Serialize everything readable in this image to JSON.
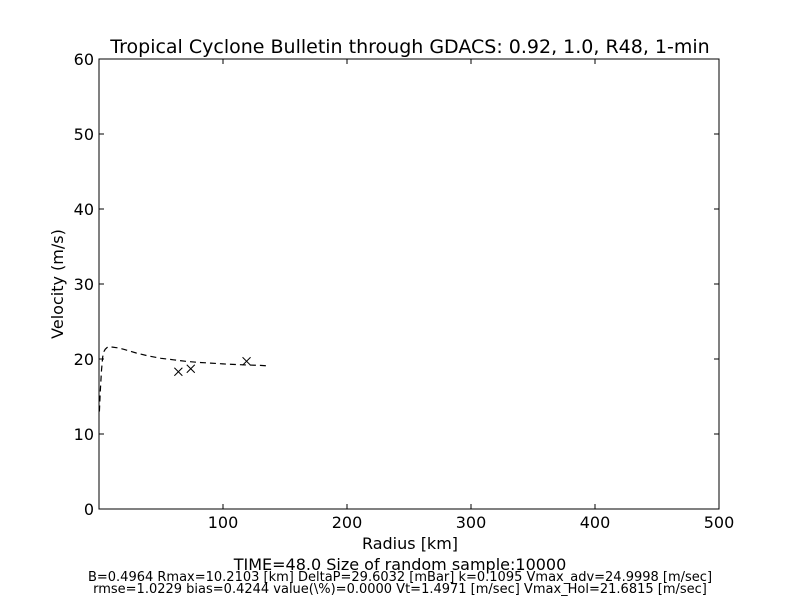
{
  "chart_data": {
    "type": "line",
    "title": "Tropical Cyclone Bulletin through GDACS: 0.92, 1.0, R48, 1-min",
    "xlabel": "Radius [km]",
    "ylabel": "Velocity (m/s)",
    "xlim": [
      0,
      500
    ],
    "ylim": [
      0,
      60
    ],
    "xticks": [
      "100",
      "200",
      "300",
      "400",
      "500"
    ],
    "yticks": [
      "0",
      "10",
      "20",
      "30",
      "40",
      "50",
      "60"
    ],
    "grid": false,
    "series": [
      {
        "style": "dashed-line",
        "color": "#000000",
        "x": [
          0.3,
          1,
          2,
          3,
          4,
          5,
          7,
          10,
          15,
          20,
          30,
          40,
          50,
          60,
          70,
          80,
          90,
          100,
          110,
          120,
          130,
          135
        ],
        "y": [
          13.0,
          15.5,
          18.5,
          20.3,
          21.0,
          21.3,
          21.6,
          21.6,
          21.5,
          21.3,
          20.8,
          20.4,
          20.1,
          19.9,
          19.7,
          19.55,
          19.45,
          19.35,
          19.27,
          19.2,
          19.15,
          19.1
        ]
      },
      {
        "style": "x-markers",
        "color": "#000000",
        "x": [
          64,
          74,
          119
        ],
        "y": [
          18.3,
          18.7,
          19.7
        ]
      }
    ]
  },
  "footer": {
    "time": "TIME=48.0      Size of random sample:10000",
    "line1": "B=0.4964 Rmax=10.2103 [km]  DeltaP=29.6032 [mBar] k=0.1095 Vmax_adv=24.9998 [m/sec]",
    "line2": "rmse=1.0229 bias=0.4244 value(\\%)=0.0000 Vt=1.4971 [m/sec] Vmax_Hol=21.6815 [m/sec]"
  }
}
